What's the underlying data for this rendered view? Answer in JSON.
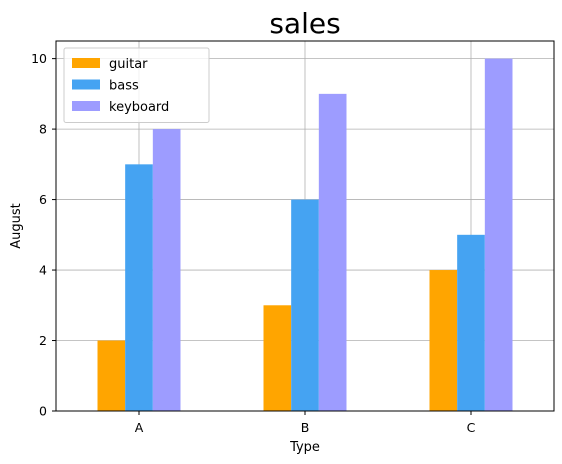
{
  "chart_data": {
    "type": "bar",
    "title": "sales",
    "xlabel": "Type",
    "ylabel": "August",
    "categories": [
      "A",
      "B",
      "C"
    ],
    "series": [
      {
        "name": "guitar",
        "values": [
          2,
          3,
          4
        ],
        "color": "#ffa500"
      },
      {
        "name": "bass",
        "values": [
          7,
          6,
          5
        ],
        "color": "#45a3f2"
      },
      {
        "name": "keyboard",
        "values": [
          8,
          9,
          10
        ],
        "color": "#9d9cff"
      }
    ],
    "ylim": [
      0,
      10.5
    ],
    "yticks": [
      0,
      2,
      4,
      6,
      8,
      10
    ],
    "grid": true,
    "legend_position": "top-left"
  }
}
